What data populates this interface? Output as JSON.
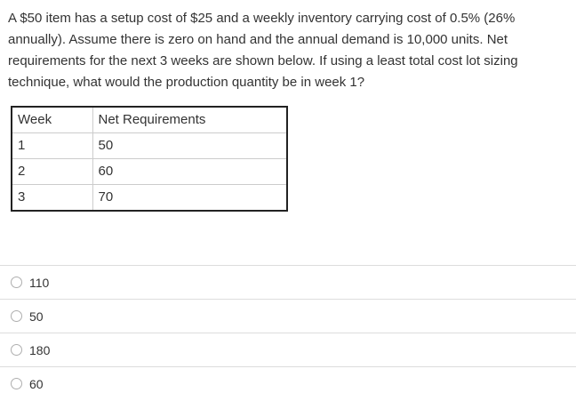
{
  "question": {
    "lines": [
      "A $50 item has a setup cost of $25 and a weekly inventory carrying cost of 0.5% (26%",
      "annually). Assume there is zero on hand and the annual demand is 10,000 units. Net",
      "requirements for the next 3 weeks are shown below. If using a least total cost lot sizing",
      "technique, what would the production quantity be in week 1?"
    ]
  },
  "table": {
    "headers": [
      "Week",
      "Net Requirements"
    ],
    "rows": [
      [
        "1",
        "50"
      ],
      [
        "2",
        "60"
      ],
      [
        "3",
        "70"
      ]
    ]
  },
  "options": [
    {
      "label": "110",
      "selected": false
    },
    {
      "label": "50",
      "selected": false
    },
    {
      "label": "180",
      "selected": false
    },
    {
      "label": "60",
      "selected": false
    }
  ],
  "colors": {
    "text": "#333333",
    "table_outer_border": "#222222",
    "table_inner_border": "#cccccc",
    "option_divider": "#dddddd",
    "radio_border": "#aeaeae",
    "background": "#ffffff"
  }
}
